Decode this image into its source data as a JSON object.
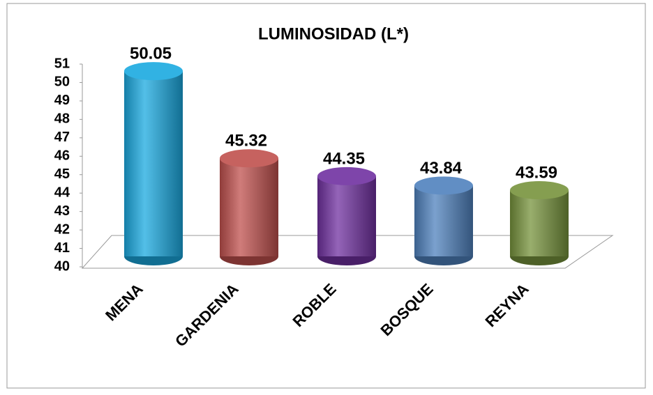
{
  "chart_data": {
    "type": "bar",
    "title": "LUMINOSIDAD (L*)",
    "categories": [
      "MENA",
      "GARDENIA",
      "ROBLE",
      "BOSQUE",
      "REYNA"
    ],
    "series": [
      {
        "name": "L*",
        "colors": [
          "#1aa9e0",
          "#c0504d",
          "#7030a0",
          "#4f81bd",
          "#77933c"
        ],
        "values": [
          50.05,
          45.32,
          44.35,
          43.84,
          43.59
        ]
      }
    ],
    "ylim": [
      40,
      51
    ],
    "yticks": [
      40,
      41,
      42,
      43,
      44,
      45,
      46,
      47,
      48,
      49,
      50,
      51
    ],
    "grid": false
  }
}
